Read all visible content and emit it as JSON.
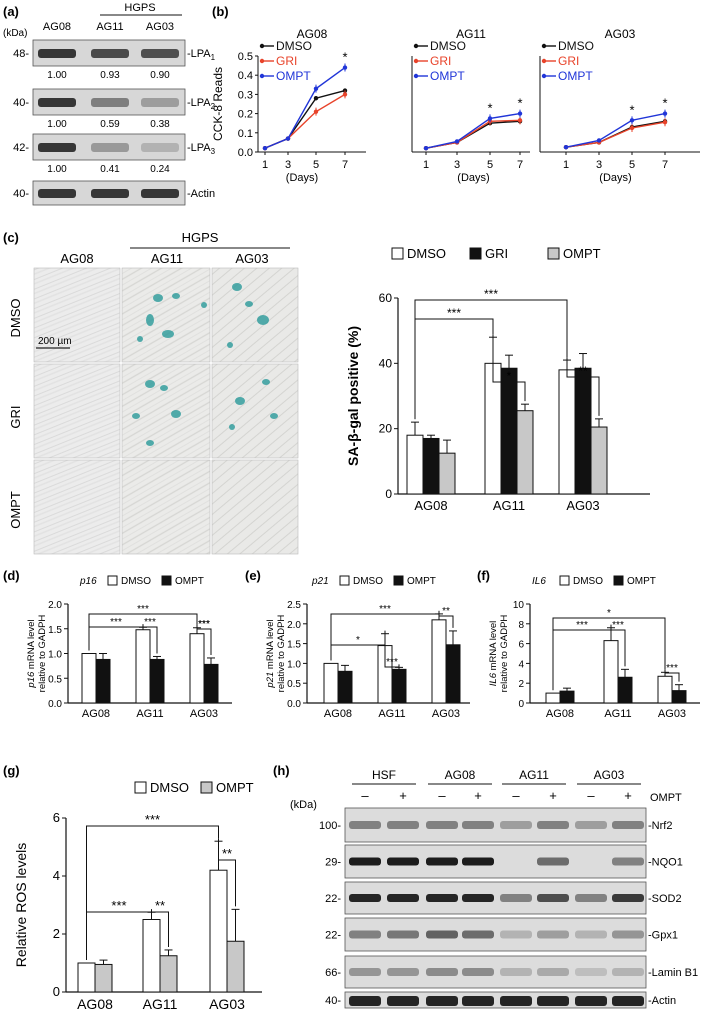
{
  "panel_labels": {
    "a": "(a)",
    "b": "(b)",
    "c": "(c)",
    "d": "(d)",
    "e": "(e)",
    "f": "(f)",
    "g": "(g)",
    "h": "(h)"
  },
  "panel_a": {
    "kda_label": "(kDa)",
    "hgps_label": "HGPS",
    "lanes": [
      "AG08",
      "AG11",
      "AG03"
    ],
    "blots": [
      {
        "marker": "48-",
        "label": "-LPA",
        "sub": "1",
        "values": [
          "1.00",
          "0.93",
          "0.90"
        ],
        "dark": 0.45
      },
      {
        "marker": "40-",
        "label": "-LPA",
        "sub": "2",
        "values": [
          "1.00",
          "0.59",
          "0.38"
        ],
        "dark": 0.35
      },
      {
        "marker": "42-",
        "label": "-LPA",
        "sub": "3",
        "values": [
          "1.00",
          "0.41",
          "0.24"
        ],
        "dark": 0.25
      },
      {
        "marker": "40-",
        "label": "-Actin",
        "sub": "",
        "values": [],
        "dark": 0.7
      }
    ]
  },
  "panel_c": {
    "hgps_label": "HGPS",
    "columns": [
      "AG08",
      "AG11",
      "AG03"
    ],
    "rows": [
      "DMSO",
      "GRI",
      "OMPT"
    ],
    "scale_bar": "200 µm"
  },
  "panel_h": {
    "kda_label": "(kDa)",
    "groups": [
      "HSF",
      "AG08",
      "AG11",
      "AG03"
    ],
    "treatment_signs": [
      "–",
      "+",
      "–",
      "+",
      "–",
      "+",
      "–",
      "+"
    ],
    "treatment_label": "OMPT",
    "blots": [
      {
        "marker": "100-",
        "label": "-Nrf2"
      },
      {
        "marker": "29-",
        "label": "-NQO1"
      },
      {
        "marker": "22-",
        "label": "-SOD2"
      },
      {
        "marker": "22-",
        "label": "-Gpx1"
      },
      {
        "marker": "66-",
        "label": "-Lamin B1"
      },
      {
        "marker": "40-",
        "label": "-Actin"
      }
    ]
  },
  "colors": {
    "dmso_line": "#111111",
    "gri_line": "#e8432a",
    "ompt_line": "#2035d8",
    "gri_bar": "#111111",
    "ompt_bar_c": "#c8c8c8",
    "ompt_bar_def": "#111111",
    "ompt_bar_g": "#c8c8c8"
  },
  "chart_data": [
    {
      "id": "b_ag08",
      "type": "line",
      "title": "AG08",
      "ylabel": "CCK-8 Reads",
      "xlabel": "(Days)",
      "x": [
        1,
        3,
        5,
        7
      ],
      "ylim": [
        0,
        0.5
      ],
      "yticks": [
        "0.0",
        "0.1",
        "0.2",
        "0.3",
        "0.4",
        "0.5"
      ],
      "xticks": [
        "1",
        "3",
        "5",
        "7"
      ],
      "series": [
        {
          "name": "DMSO",
          "values": [
            0.02,
            0.07,
            0.28,
            0.32
          ]
        },
        {
          "name": "GRI",
          "values": [
            0.02,
            0.07,
            0.21,
            0.3
          ]
        },
        {
          "name": "OMPT",
          "values": [
            0.02,
            0.07,
            0.33,
            0.44
          ]
        }
      ],
      "significance": [
        {
          "x": 7,
          "label": "*"
        }
      ]
    },
    {
      "id": "b_ag11",
      "type": "line",
      "title": "AG11",
      "xlabel": "(Days)",
      "x": [
        1,
        3,
        5,
        7
      ],
      "ylim": [
        0,
        0.5
      ],
      "xticks": [
        "1",
        "3",
        "5",
        "7"
      ],
      "series": [
        {
          "name": "DMSO",
          "values": [
            0.02,
            0.05,
            0.15,
            0.16
          ]
        },
        {
          "name": "GRI",
          "values": [
            0.02,
            0.05,
            0.16,
            0.165
          ]
        },
        {
          "name": "OMPT",
          "values": [
            0.02,
            0.055,
            0.175,
            0.2
          ]
        }
      ],
      "significance": [
        {
          "x": 5,
          "label": "*"
        },
        {
          "x": 7,
          "label": "*"
        }
      ]
    },
    {
      "id": "b_ag03",
      "type": "line",
      "title": "AG03",
      "xlabel": "(Days)",
      "x": [
        1,
        3,
        5,
        7
      ],
      "ylim": [
        0,
        0.5
      ],
      "xticks": [
        "1",
        "3",
        "5",
        "7"
      ],
      "series": [
        {
          "name": "DMSO",
          "values": [
            0.025,
            0.05,
            0.13,
            0.16
          ]
        },
        {
          "name": "GRI",
          "values": [
            0.025,
            0.05,
            0.125,
            0.155
          ]
        },
        {
          "name": "OMPT",
          "values": [
            0.025,
            0.06,
            0.165,
            0.2
          ]
        }
      ],
      "significance": [
        {
          "x": 5,
          "label": "*"
        },
        {
          "x": 7,
          "label": "*"
        }
      ]
    },
    {
      "id": "c_bar",
      "type": "bar",
      "ylabel": "SA-β-gal positive (%)",
      "categories": [
        "AG08",
        "AG11",
        "AG03"
      ],
      "ylim": [
        0,
        60
      ],
      "yticks": [
        "0",
        "20",
        "40",
        "60"
      ],
      "series": [
        {
          "name": "DMSO",
          "values": [
            18,
            40,
            38
          ],
          "errors": [
            4,
            8,
            3
          ]
        },
        {
          "name": "GRI",
          "values": [
            17,
            38.5,
            38.5
          ],
          "errors": [
            1,
            4,
            4.5
          ]
        },
        {
          "name": "OMPT",
          "values": [
            12.5,
            25.5,
            20.5
          ],
          "errors": [
            4,
            2,
            2.5
          ]
        }
      ],
      "significance": [
        "***",
        "***",
        "*",
        "**"
      ]
    },
    {
      "id": "d_bar",
      "type": "bar",
      "gene": "p16",
      "ylabel": "mRNA level",
      "ylabel2": "relative to GADPH",
      "categories": [
        "AG08",
        "AG11",
        "AG03"
      ],
      "ylim": [
        0,
        2.0
      ],
      "yticks": [
        "0.0",
        "0.5",
        "1.0",
        "1.5",
        "2.0"
      ],
      "series": [
        {
          "name": "DMSO",
          "values": [
            1.0,
            1.48,
            1.4
          ],
          "errors": [
            0,
            0.05,
            0.12
          ]
        },
        {
          "name": "OMPT",
          "values": [
            0.88,
            0.88,
            0.78
          ],
          "errors": [
            0.12,
            0.06,
            0.13
          ]
        }
      ],
      "significance": [
        "***",
        "***",
        "***",
        "***",
        "***"
      ]
    },
    {
      "id": "e_bar",
      "type": "bar",
      "gene": "p21",
      "ylabel": "mRNA level",
      "ylabel2": "relative to GADPH",
      "categories": [
        "AG08",
        "AG11",
        "AG03"
      ],
      "ylim": [
        0,
        2.5
      ],
      "yticks": [
        "0.0",
        "0.5",
        "1.0",
        "1.5",
        "2.0",
        "2.5"
      ],
      "series": [
        {
          "name": "DMSO",
          "values": [
            1.0,
            1.45,
            2.1
          ],
          "errors": [
            0,
            0.3,
            0.15
          ]
        },
        {
          "name": "OMPT",
          "values": [
            0.8,
            0.85,
            1.47
          ],
          "errors": [
            0.15,
            0.05,
            0.35
          ]
        }
      ],
      "significance": [
        "***",
        "*",
        "***",
        "**"
      ]
    },
    {
      "id": "f_bar",
      "type": "bar",
      "gene": "IL6",
      "ylabel": "mRNA level",
      "ylabel2": "relative to GADPH",
      "categories": [
        "AG08",
        "AG11",
        "AG03"
      ],
      "ylim": [
        0,
        10
      ],
      "yticks": [
        "0",
        "2",
        "4",
        "6",
        "8",
        "10"
      ],
      "series": [
        {
          "name": "DMSO",
          "values": [
            1.0,
            6.3,
            2.7
          ],
          "errors": [
            0,
            1.3,
            0.4
          ]
        },
        {
          "name": "OMPT",
          "values": [
            1.2,
            2.6,
            1.25
          ],
          "errors": [
            0.3,
            0.8,
            0.6
          ]
        }
      ],
      "significance": [
        "*",
        "***",
        "***",
        "***"
      ]
    },
    {
      "id": "g_bar",
      "type": "bar",
      "ylabel": "Relative ROS levels",
      "categories": [
        "AG08",
        "AG11",
        "AG03"
      ],
      "ylim": [
        0,
        6
      ],
      "yticks": [
        "0",
        "2",
        "4",
        "6"
      ],
      "series": [
        {
          "name": "DMSO",
          "values": [
            1.0,
            2.5,
            4.2
          ],
          "errors": [
            0,
            0.25,
            1.0
          ]
        },
        {
          "name": "OMPT",
          "values": [
            0.95,
            1.25,
            1.75
          ],
          "errors": [
            0.15,
            0.2,
            1.1
          ]
        }
      ],
      "significance": [
        "***",
        "***",
        "**",
        "**"
      ]
    }
  ]
}
